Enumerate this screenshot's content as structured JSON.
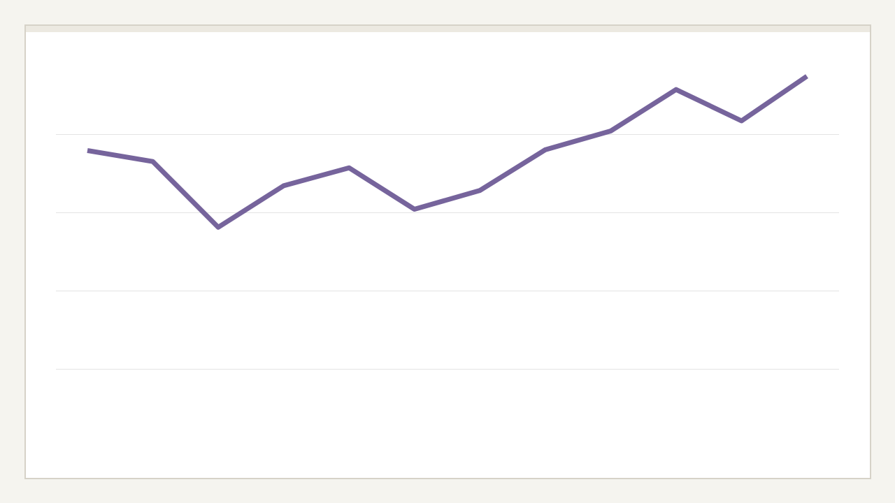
{
  "colors": {
    "page_background": "#f5f4ef",
    "card_background": "#ffffff",
    "card_border": "#d6d2c8",
    "card_topbar": "#ece9e1",
    "gridline": "#e3e3e3",
    "line": "#76649c"
  },
  "chart_data": {
    "type": "line",
    "title": "",
    "xlabel": "",
    "ylabel": "",
    "grid": true,
    "legend": "none",
    "x": [
      1,
      2,
      3,
      4,
      5,
      6,
      7,
      8,
      9,
      10,
      11,
      12
    ],
    "ylim": [
      0,
      5
    ],
    "gridlines": [
      1,
      2,
      3,
      4
    ],
    "series": [
      {
        "values": [
          3.79,
          3.65,
          2.81,
          3.34,
          3.57,
          3.04,
          3.28,
          3.8,
          4.04,
          4.57,
          4.17,
          4.74
        ]
      }
    ]
  }
}
